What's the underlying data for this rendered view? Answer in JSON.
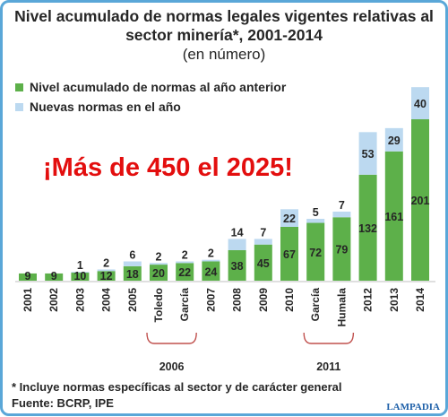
{
  "chart_data": {
    "type": "bar",
    "stacked": true,
    "title": "Nivel acumulado de normas legales vigentes relativas al sector minería*, 2001-2014",
    "subtitle": "(en número)",
    "categories": [
      "2001",
      "2002",
      "2003",
      "2004",
      "2005",
      "Toledo",
      "García",
      "2007",
      "2008",
      "2009",
      "2010",
      "García",
      "Humala",
      "2012",
      "2013",
      "2014"
    ],
    "series": [
      {
        "name": "Nivel acumulado de normas al año anterior",
        "color": "#5db04a",
        "values": [
          9,
          9,
          10,
          12,
          18,
          20,
          22,
          24,
          38,
          45,
          67,
          72,
          79,
          132,
          161,
          201
        ]
      },
      {
        "name": "Nuevas normas en el año",
        "color": "#bcd9f0",
        "values": [
          0,
          0,
          1,
          2,
          6,
          2,
          2,
          2,
          14,
          7,
          22,
          5,
          7,
          53,
          29,
          40
        ]
      }
    ],
    "groups": [
      {
        "label": "2006",
        "from": 5,
        "to": 6
      },
      {
        "label": "2011",
        "from": 11,
        "to": 12
      }
    ],
    "legend_position": "top-left",
    "grid": false,
    "ylim": [
      0,
      245
    ]
  },
  "annotation": "¡Más de 450 el 2025!",
  "footnote": "* Incluye normas específicas al sector y de carácter general",
  "source": "Fuente: BCRP, IPE",
  "brand": "LAMPADIA"
}
